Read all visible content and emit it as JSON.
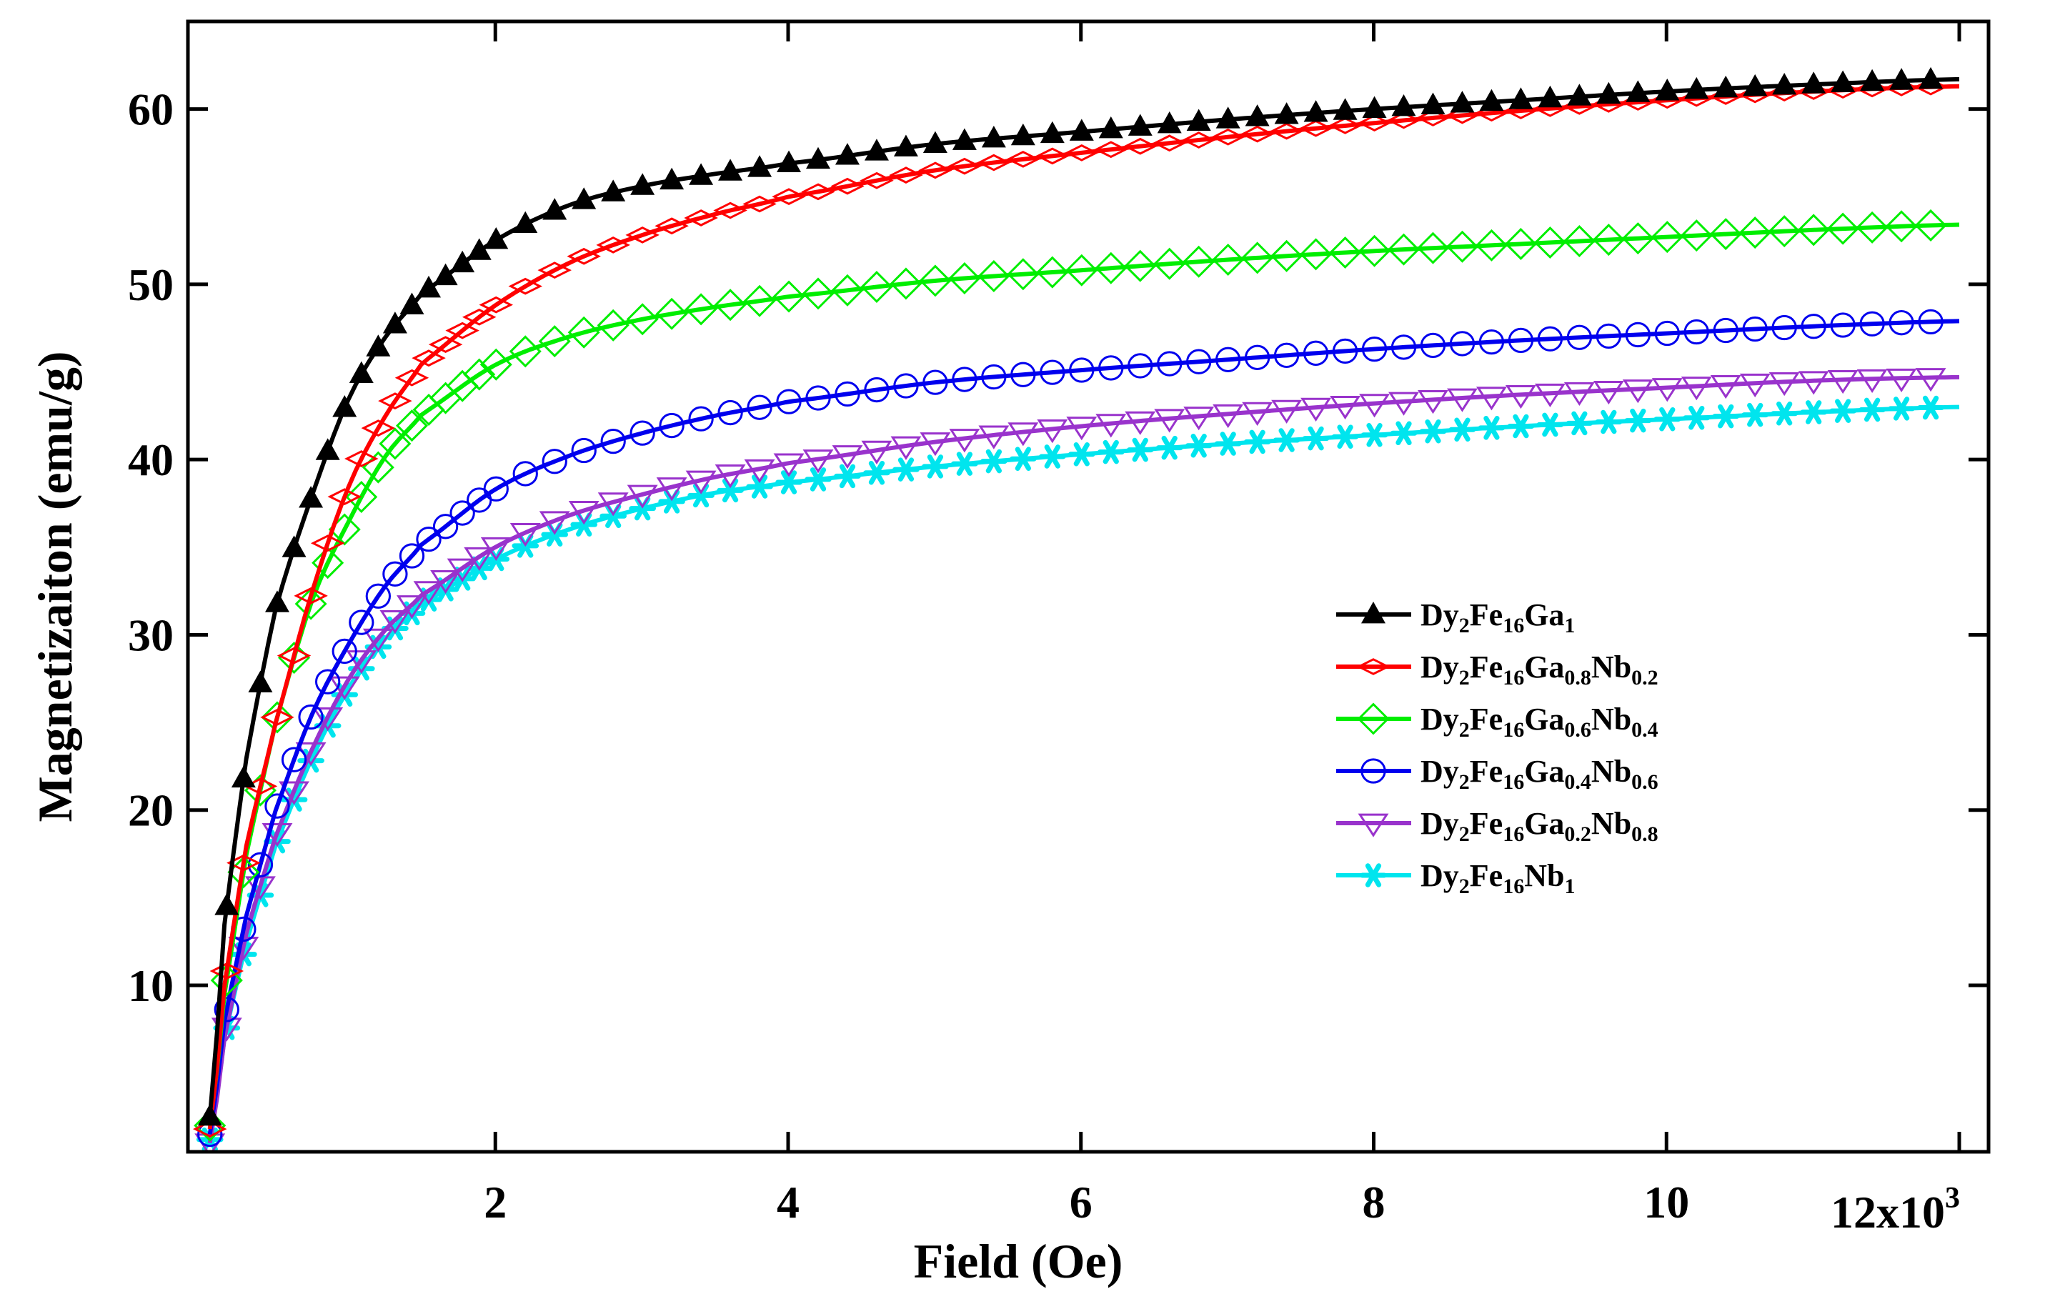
{
  "chart_data": {
    "type": "line",
    "title": "",
    "xlabel": "Field (Oe)",
    "ylabel": "Magnetizaiton (emu/g)",
    "x_multiplier_label": "x10",
    "x_multiplier_exponent": "3",
    "xlim": [
      -0.1,
      12.2
    ],
    "ylim": [
      0.5,
      65
    ],
    "x_ticks": [
      "2",
      "4",
      "6",
      "8",
      "10",
      "12"
    ],
    "y_ticks": [
      "10",
      "20",
      "30",
      "40",
      "50",
      "60"
    ],
    "legend_position": "center-right",
    "x_unit": "x10^3 Oe",
    "x": [
      0.05,
      0.15,
      0.3,
      0.5,
      0.75,
      1.0,
      1.25,
      1.5,
      2,
      2.5,
      3,
      3.5,
      4,
      5,
      6,
      7,
      8,
      9,
      10,
      11,
      12
    ],
    "series": [
      {
        "name": "Dy2Fe16Ga1",
        "label_parts": [
          [
            "Dy",
            ""
          ],
          [
            "2",
            "sub"
          ],
          [
            "Fe",
            ""
          ],
          [
            "16",
            "sub"
          ],
          [
            "Ga",
            ""
          ],
          [
            "1",
            "sub"
          ]
        ],
        "color": "#000000",
        "marker": "filled-triangle",
        "values": [
          2.5,
          13.5,
          23,
          31.5,
          38,
          43.5,
          47,
          49.5,
          52.5,
          54.5,
          55.6,
          56.3,
          56.9,
          58,
          58.7,
          59.4,
          60.0,
          60.5,
          61.0,
          61.4,
          61.7
        ]
      },
      {
        "name": "Dy2Fe16Ga0.8Nb0.2",
        "label_parts": [
          [
            "Dy",
            ""
          ],
          [
            "2",
            "sub"
          ],
          [
            "Fe",
            ""
          ],
          [
            "16",
            "sub"
          ],
          [
            "Ga",
            ""
          ],
          [
            "0.8",
            "sub"
          ],
          [
            "Nb",
            ""
          ],
          [
            "0.2",
            "sub"
          ]
        ],
        "color": "#ff0000",
        "marker": "thin-diamond",
        "values": [
          1.8,
          10,
          18,
          25,
          32.5,
          38.5,
          42.5,
          45.5,
          48.8,
          51.2,
          52.8,
          54.0,
          55.0,
          56.5,
          57.5,
          58.4,
          59.2,
          59.9,
          60.5,
          61.0,
          61.3
        ]
      },
      {
        "name": "Dy2Fe16Ga0.6Nb0.4",
        "label_parts": [
          [
            "Dy",
            ""
          ],
          [
            "2",
            "sub"
          ],
          [
            "Fe",
            ""
          ],
          [
            "16",
            "sub"
          ],
          [
            "Ga",
            ""
          ],
          [
            "0.6",
            "sub"
          ],
          [
            "Nb",
            ""
          ],
          [
            "0.4",
            "sub"
          ]
        ],
        "color": "#00ee00",
        "marker": "open-diamond",
        "values": [
          2.0,
          9.5,
          17.5,
          25,
          32,
          36.5,
          40.2,
          42.6,
          45.4,
          47.0,
          48.0,
          48.7,
          49.3,
          50.2,
          50.8,
          51.4,
          51.9,
          52.3,
          52.7,
          53.1,
          53.4
        ]
      },
      {
        "name": "Dy2Fe16Ga0.4Nb0.6",
        "label_parts": [
          [
            "Dy",
            ""
          ],
          [
            "2",
            "sub"
          ],
          [
            "Fe",
            ""
          ],
          [
            "16",
            "sub"
          ],
          [
            "Ga",
            ""
          ],
          [
            "0.4",
            "sub"
          ],
          [
            "Nb",
            ""
          ],
          [
            "0.6",
            "sub"
          ]
        ],
        "color": "#0000ee",
        "marker": "open-circle",
        "values": [
          1.5,
          8,
          14,
          20,
          25.5,
          29.5,
          32.8,
          35.2,
          38.3,
          40.2,
          41.5,
          42.5,
          43.3,
          44.4,
          45.1,
          45.7,
          46.3,
          46.8,
          47.2,
          47.6,
          47.9
        ]
      },
      {
        "name": "Dy2Fe16Ga0.2Nb0.8",
        "label_parts": [
          [
            "Dy",
            ""
          ],
          [
            "2",
            "sub"
          ],
          [
            "Fe",
            ""
          ],
          [
            "16",
            "sub"
          ],
          [
            "Ga",
            ""
          ],
          [
            "0.2",
            "sub"
          ],
          [
            "Nb",
            ""
          ],
          [
            "0.8",
            "sub"
          ]
        ],
        "color": "#9933cc",
        "marker": "open-triangle-down",
        "values": [
          1.0,
          7,
          13,
          18.5,
          23.5,
          27.5,
          30.3,
          32.3,
          35.0,
          36.8,
          38.0,
          39.0,
          39.8,
          41.0,
          41.9,
          42.6,
          43.2,
          43.7,
          44.1,
          44.5,
          44.7
        ]
      },
      {
        "name": "Dy2Fe16Nb1",
        "label_parts": [
          [
            "Dy",
            ""
          ],
          [
            "2",
            "sub"
          ],
          [
            "Fe",
            ""
          ],
          [
            "16",
            "sub"
          ],
          [
            "Nb",
            ""
          ],
          [
            "1",
            "sub"
          ]
        ],
        "color": "#00e5ee",
        "marker": "asterisk",
        "values": [
          1.2,
          7,
          12.5,
          18,
          23,
          27,
          29.8,
          31.8,
          34.3,
          36.0,
          37.2,
          38.1,
          38.7,
          39.6,
          40.3,
          40.9,
          41.4,
          41.9,
          42.3,
          42.7,
          43.0
        ]
      }
    ]
  }
}
